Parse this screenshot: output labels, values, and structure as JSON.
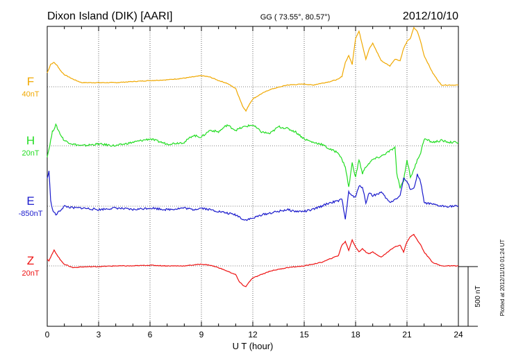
{
  "header": {
    "station": "Dixon Island (DIK)  [AARI]",
    "coords": "GG ( 73.55°,  80.57°)",
    "date": "2012/10/10"
  },
  "footer": {
    "plotted": "Plotted at 2012/11/10 01:24  UT"
  },
  "chart_data": {
    "type": "line",
    "xlabel": "U T (hour)",
    "xlim": [
      0,
      24
    ],
    "xticks": [
      "0",
      "3",
      "6",
      "9",
      "12",
      "15",
      "18",
      "21",
      "24"
    ],
    "grid": true,
    "scale_bar": "500 nT",
    "series": [
      {
        "name": "F",
        "baseline_label": "40nT",
        "color": "#f0a800",
        "x": [
          0,
          0.1,
          0.2,
          0.4,
          0.6,
          0.8,
          1,
          1.5,
          2,
          3,
          4,
          5,
          6,
          7,
          8,
          9,
          9.5,
          10,
          10.5,
          11,
          11.2,
          11.4,
          11.6,
          11.8,
          12,
          12.5,
          13,
          14,
          15,
          15.5,
          16,
          16.5,
          17,
          17.2,
          17.4,
          17.6,
          17.8,
          18,
          18.2,
          18.4,
          18.6,
          18.8,
          19,
          19.5,
          20,
          20.3,
          20.6,
          20.8,
          21,
          21.2,
          21.4,
          21.6,
          21.8,
          22,
          22.5,
          23,
          23.5,
          24
        ],
        "y": [
          40,
          52,
          65,
          70,
          60,
          45,
          35,
          22,
          12,
          12,
          12,
          15,
          18,
          20,
          25,
          32,
          28,
          18,
          10,
          -5,
          -30,
          -55,
          -70,
          -50,
          -35,
          -20,
          -8,
          5,
          8,
          5,
          10,
          15,
          22,
          30,
          70,
          90,
          65,
          140,
          160,
          120,
          80,
          110,
          125,
          75,
          60,
          80,
          75,
          110,
          130,
          140,
          170,
          160,
          130,
          90,
          40,
          5,
          5,
          5
        ]
      },
      {
        "name": "H",
        "baseline_label": "20nT",
        "color": "#22dd22",
        "x": [
          0,
          0.1,
          0.3,
          0.5,
          0.8,
          1,
          1.5,
          2,
          3,
          4,
          5,
          6,
          7,
          8,
          8.5,
          9,
          9.5,
          10,
          10.5,
          11,
          11.5,
          12,
          12.5,
          13,
          13.5,
          14,
          14.5,
          15,
          15.5,
          16,
          16.5,
          17,
          17.2,
          17.4,
          17.6,
          17.8,
          18,
          18.2,
          18.4,
          18.6,
          18.8,
          19,
          19.5,
          20,
          20.3,
          20.4,
          20.6,
          20.8,
          21,
          21.2,
          21.4,
          21.6,
          21.8,
          22,
          22.5,
          23,
          23.5,
          24
        ],
        "y": [
          -30,
          -10,
          40,
          60,
          30,
          15,
          5,
          0,
          5,
          0,
          10,
          20,
          5,
          10,
          30,
          25,
          45,
          40,
          60,
          45,
          55,
          60,
          40,
          35,
          55,
          50,
          40,
          20,
          10,
          5,
          -10,
          -20,
          -40,
          -60,
          -120,
          -50,
          -90,
          -40,
          -80,
          -60,
          -50,
          -40,
          -30,
          -15,
          -5,
          -80,
          -120,
          -100,
          -40,
          -90,
          -70,
          -40,
          -20,
          20,
          10,
          15,
          10,
          10
        ]
      },
      {
        "name": "E",
        "baseline_label": "-850nT",
        "color": "#1a1acc",
        "x": [
          0,
          0.1,
          0.2,
          0.3,
          0.5,
          0.8,
          1,
          1.5,
          2,
          3,
          4,
          5,
          6,
          7,
          8,
          8.5,
          9,
          9.5,
          10,
          10.5,
          11,
          11.2,
          11.5,
          12,
          12.5,
          13,
          13.5,
          14,
          14.5,
          15,
          15.5,
          16,
          16.5,
          17,
          17.2,
          17.4,
          17.6,
          17.8,
          18,
          18.2,
          18.4,
          18.6,
          18.8,
          19,
          19.5,
          20,
          20.3,
          20.6,
          20.8,
          21,
          21.2,
          21.4,
          21.6,
          21.8,
          22,
          22.5,
          23,
          23.5,
          24
        ],
        "y": [
          80,
          100,
          20,
          -10,
          -25,
          -10,
          0,
          -5,
          -5,
          -10,
          -5,
          -10,
          -5,
          -10,
          -5,
          -10,
          -5,
          -10,
          -15,
          -20,
          -25,
          -30,
          -40,
          -35,
          -25,
          -20,
          -15,
          -10,
          -15,
          -15,
          -10,
          0,
          10,
          15,
          20,
          -35,
          40,
          30,
          25,
          60,
          55,
          10,
          40,
          30,
          40,
          10,
          20,
          30,
          80,
          70,
          50,
          50,
          90,
          70,
          10,
          5,
          0,
          0,
          0
        ]
      },
      {
        "name": "Z",
        "baseline_label": "20nT",
        "color": "#ee1111",
        "x": [
          0,
          0.1,
          0.2,
          0.4,
          0.6,
          0.8,
          1,
          1.5,
          2,
          3,
          4,
          5,
          6,
          7,
          8,
          9,
          9.5,
          10,
          10.5,
          11,
          11.2,
          11.4,
          11.6,
          11.8,
          12,
          12.5,
          13,
          13.5,
          14,
          15,
          15.5,
          16,
          16.5,
          17,
          17.2,
          17.4,
          17.6,
          17.8,
          18,
          18.2,
          18.4,
          18.6,
          18.8,
          19,
          19.5,
          20,
          20.3,
          20.6,
          20.8,
          21,
          21.2,
          21.4,
          21.6,
          21.8,
          22,
          22.5,
          23,
          23.5,
          24
        ],
        "y": [
          20,
          15,
          25,
          45,
          30,
          15,
          5,
          -5,
          -3,
          -2,
          0,
          0,
          2,
          0,
          0,
          5,
          2,
          -5,
          -15,
          -25,
          -45,
          -55,
          -60,
          -45,
          -35,
          -25,
          -15,
          -10,
          -5,
          0,
          5,
          10,
          20,
          30,
          60,
          70,
          45,
          75,
          55,
          40,
          50,
          40,
          35,
          40,
          25,
          45,
          55,
          60,
          40,
          70,
          85,
          90,
          75,
          60,
          40,
          10,
          0,
          0,
          0
        ]
      }
    ]
  }
}
